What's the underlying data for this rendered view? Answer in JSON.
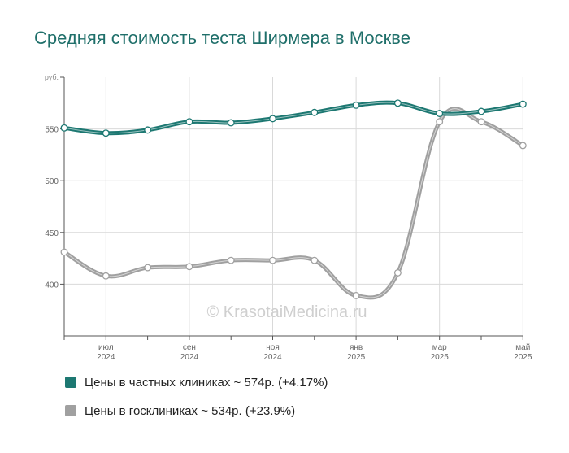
{
  "title": "Средняя стоимость теста Ширмера в Москве",
  "watermark": "© KrasotaiMedicina.ru",
  "colors": {
    "private": "#1d7872",
    "public": "#a0a0a0",
    "title": "#1f6f6a",
    "grid": "#d9d9d9",
    "axis": "#555555"
  },
  "legend": [
    {
      "label": "Цены в частных клиниках ~ 574р. (+4.17%)",
      "color": "#1d7872"
    },
    {
      "label": "Цены в госклиниках ~ 534р. (+23.9%)",
      "color": "#a0a0a0"
    }
  ],
  "chart_data": {
    "type": "line",
    "title": "Средняя стоимость теста Ширмера в Москве",
    "ylabel": "руб.",
    "ylim": [
      350,
      600
    ],
    "yticks": [
      400,
      450,
      500,
      550
    ],
    "x": [
      "2024-06",
      "2024-07",
      "2024-08",
      "2024-09",
      "2024-10",
      "2024-11",
      "2024-12",
      "2025-01",
      "2025-02",
      "2025-03",
      "2025-04",
      "2025-05"
    ],
    "x_tick_labels": [
      {
        "line1": "июл",
        "line2": "2024"
      },
      {
        "line1": "сен",
        "line2": "2024"
      },
      {
        "line1": "ноя",
        "line2": "2024"
      },
      {
        "line1": "янв",
        "line2": "2025"
      },
      {
        "line1": "мар",
        "line2": "2025"
      },
      {
        "line1": "май",
        "line2": "2025"
      }
    ],
    "grid": true,
    "legend_position": "bottom",
    "series": [
      {
        "name": "Цены в частных клиниках ~ 574р. (+4.17%)",
        "values": [
          551,
          546,
          549,
          557,
          556,
          560,
          566,
          573,
          575,
          565,
          567,
          574
        ]
      },
      {
        "name": "Цены в госклиниках ~ 534р. (+23.9%)",
        "values": [
          431,
          408,
          416,
          417,
          423,
          423,
          423,
          389,
          411,
          557,
          557,
          534
        ]
      }
    ]
  }
}
